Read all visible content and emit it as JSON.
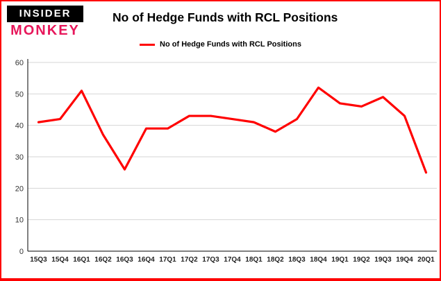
{
  "header": {
    "logo_line1": "INSIDER",
    "logo_line2": "MONKEY",
    "title": "No of Hedge Funds with RCL Positions"
  },
  "legend": {
    "label": "No of Hedge Funds with RCL Positions",
    "color": "#ff0000"
  },
  "chart_data": {
    "type": "line",
    "title": "No of Hedge Funds with RCL Positions",
    "categories": [
      "15Q3",
      "15Q4",
      "16Q1",
      "16Q2",
      "16Q3",
      "16Q4",
      "17Q1",
      "17Q2",
      "17Q3",
      "17Q4",
      "18Q1",
      "18Q2",
      "18Q3",
      "18Q4",
      "19Q1",
      "19Q2",
      "19Q3",
      "19Q4",
      "20Q1"
    ],
    "series": [
      {
        "name": "No of Hedge Funds with RCL Positions",
        "values": [
          41,
          42,
          51,
          37,
          26,
          39,
          39,
          43,
          43,
          42,
          41,
          38,
          42,
          52,
          47,
          46,
          49,
          43,
          25
        ]
      }
    ],
    "xlabel": "",
    "ylabel": "",
    "ylim": [
      0,
      60
    ],
    "yticks": [
      0,
      10,
      20,
      30,
      40,
      50,
      60
    ],
    "grid": true,
    "legend_position": "top",
    "line_color": "#ff0000"
  },
  "colors": {
    "accent_red": "#fe0000",
    "logo_pink": "#e7175b",
    "grid": "#d6d6d6",
    "axis": "#000000",
    "tick_text": "#333333",
    "x_label_text": "#222222"
  }
}
